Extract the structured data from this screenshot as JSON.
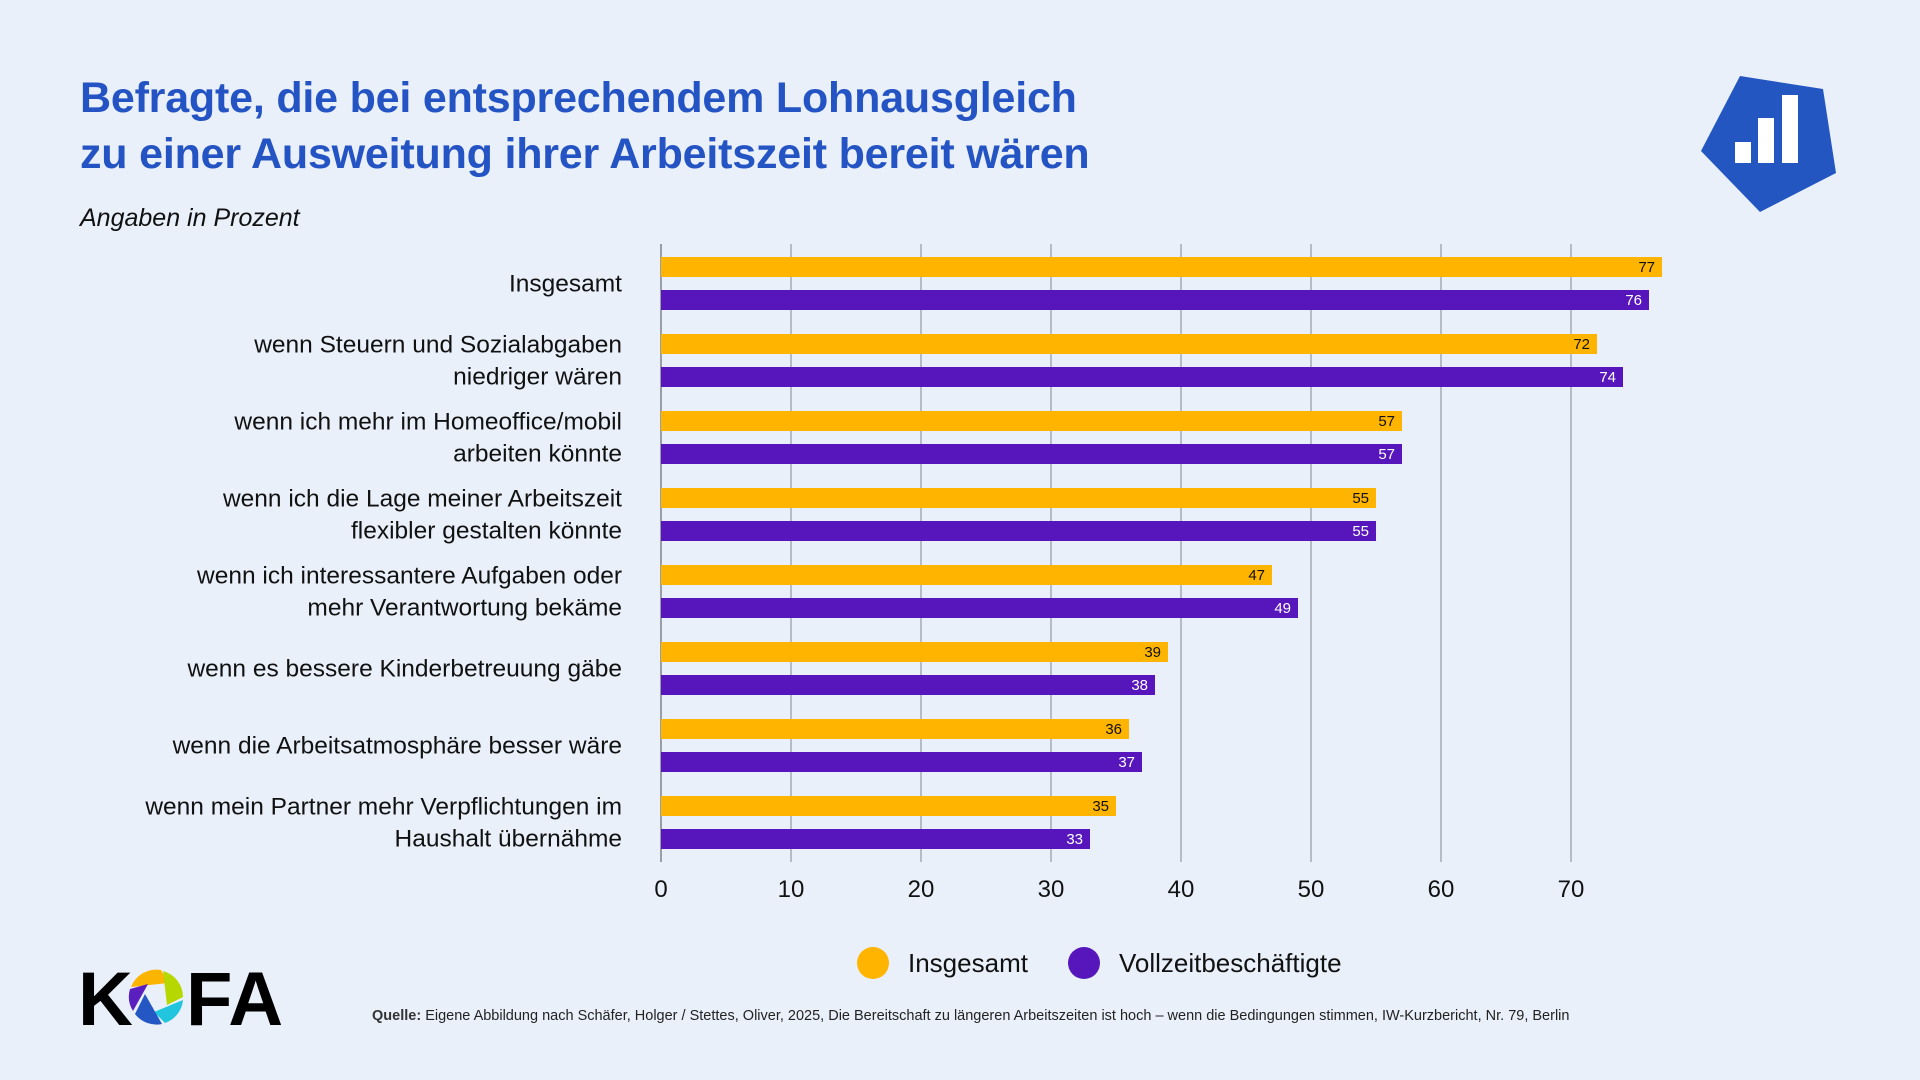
{
  "header": {
    "title_line1": "Befragte, die bei entsprechendem Lohnausgleich",
    "title_line2": "zu einer Ausweitung ihrer Arbeitszeit bereit wären",
    "subtitle": "Angaben in Prozent",
    "brand_icon": "bar-chart-shield-icon"
  },
  "colors": {
    "background": "#E9F0FA",
    "title": "#2453C4",
    "series_insgesamt": "#FFB400",
    "series_vollzeit": "#5716BC",
    "gridline": "#9AA0AA"
  },
  "chart_data": {
    "type": "bar",
    "orientation": "horizontal",
    "title": "Befragte, die bei entsprechendem Lohnausgleich zu einer Ausweitung ihrer Arbeitszeit bereit wären",
    "subtitle": "Angaben in Prozent",
    "xlabel": "",
    "ylabel": "",
    "xlim": [
      0,
      77
    ],
    "xticks": [
      0,
      10,
      20,
      30,
      40,
      50,
      60,
      70
    ],
    "grid": true,
    "legend_position": "bottom-center",
    "categories": [
      [
        "Insgesamt"
      ],
      [
        "wenn Steuern und Sozialabgaben",
        "niedriger wären"
      ],
      [
        "wenn ich mehr im Homeoffice/mobil",
        "arbeiten könnte"
      ],
      [
        "wenn ich die Lage meiner Arbeitszeit",
        "flexibler gestalten könnte"
      ],
      [
        "wenn ich interessantere Aufgaben oder",
        "mehr Verantwortung bekäme"
      ],
      [
        "wenn es bessere Kinderbetreuung gäbe"
      ],
      [
        "wenn die Arbeitsatmosphäre besser wäre"
      ],
      [
        "wenn mein Partner mehr Verpflichtungen im",
        "Haushalt übernähme"
      ]
    ],
    "series": [
      {
        "name": "Insgesamt",
        "color": "#FFB400",
        "label_color": "#111111",
        "values": [
          77,
          72,
          57,
          55,
          47,
          39,
          36,
          35
        ]
      },
      {
        "name": "Vollzeitbeschäftigte",
        "color": "#5716BC",
        "label_color": "#FFFFFF",
        "values": [
          76,
          74,
          57,
          55,
          49,
          38,
          37,
          33
        ]
      }
    ]
  },
  "legend": {
    "items": [
      {
        "label": "Insgesamt",
        "color": "#FFB400"
      },
      {
        "label": "Vollzeitbeschäftigte",
        "color": "#5716BC"
      }
    ]
  },
  "footer": {
    "logo_text": "KOFA",
    "source_label": "Quelle:",
    "source_text": "Eigene Abbildung nach Schäfer, Holger / Stettes, Oliver, 2025, Die Bereitschaft zu längeren Arbeitszeiten ist hoch – wenn die Bedingungen stimmen, IW-Kurzbericht, Nr. 79, Berlin"
  }
}
